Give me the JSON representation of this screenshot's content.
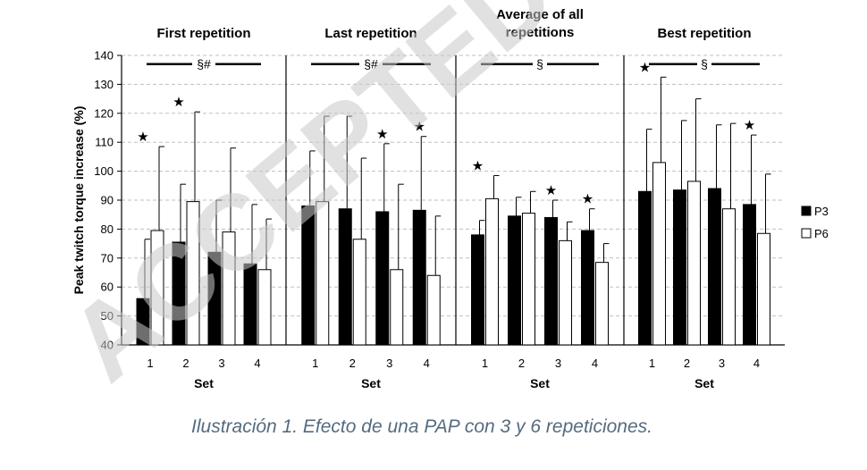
{
  "caption": "Ilustración 1. Efecto de una PAP con 3 y 6 repeticiones.",
  "watermark": "ACCEPTED",
  "colors": {
    "p3": "#000000",
    "p6": "#ffffff",
    "axis": "#000000",
    "grid": "#bfbfbf",
    "watermark": "#c8c8c8",
    "caption": "#556b7f"
  },
  "chart_data": [
    {
      "type": "bar",
      "title": "First repetition",
      "categories": [
        "1",
        "2",
        "3",
        "4"
      ],
      "xlabel": "Set",
      "ylabel": "Peak twitch torque increase (%)",
      "ylim": [
        40,
        140
      ],
      "yticks": [
        40,
        50,
        60,
        70,
        80,
        90,
        100,
        110,
        120,
        130,
        140
      ],
      "grid": true,
      "legend_position": "right",
      "series": [
        {
          "name": "P3",
          "values": [
            56,
            75.5,
            72,
            68
          ],
          "error": [
            20.5,
            20,
            18,
            20.5
          ]
        },
        {
          "name": "P6",
          "values": [
            79.5,
            89.5,
            79,
            66
          ],
          "error": [
            29,
            31,
            29,
            17.5
          ]
        }
      ],
      "significance_bar": "§#",
      "stars": [
        1,
        1,
        0,
        0
      ]
    },
    {
      "type": "bar",
      "title": "Last repetition",
      "categories": [
        "1",
        "2",
        "3",
        "4"
      ],
      "xlabel": "Set",
      "ylim": [
        40,
        140
      ],
      "grid": true,
      "series": [
        {
          "name": "P3",
          "values": [
            88,
            87,
            86,
            86.5
          ],
          "error": [
            19,
            32,
            23.5,
            25.5
          ]
        },
        {
          "name": "P6",
          "values": [
            89.5,
            76.5,
            66,
            64
          ],
          "error": [
            29.5,
            28,
            29.5,
            20.5
          ]
        }
      ],
      "significance_bar": "§#",
      "stars": [
        0,
        0,
        1,
        1
      ]
    },
    {
      "type": "bar",
      "title": "Average of all repetitions",
      "categories": [
        "1",
        "2",
        "3",
        "4"
      ],
      "xlabel": "Set",
      "ylim": [
        40,
        140
      ],
      "grid": true,
      "series": [
        {
          "name": "P3",
          "values": [
            78,
            84.5,
            84,
            79.5
          ],
          "error": [
            5,
            6.5,
            6,
            7.5
          ]
        },
        {
          "name": "P6",
          "values": [
            90.5,
            85.5,
            76,
            68.5
          ],
          "error": [
            8,
            7.5,
            6.5,
            6.5
          ]
        }
      ],
      "significance_bar": "§",
      "stars": [
        1,
        0,
        1,
        1
      ]
    },
    {
      "type": "bar",
      "title": "Best repetition",
      "categories": [
        "1",
        "2",
        "3",
        "4"
      ],
      "xlabel": "Set",
      "ylim": [
        40,
        140
      ],
      "grid": true,
      "series": [
        {
          "name": "P3",
          "values": [
            93,
            93.5,
            94,
            88.5
          ],
          "error": [
            21.5,
            24,
            22,
            24
          ]
        },
        {
          "name": "P6",
          "values": [
            103,
            96.5,
            87,
            78.5
          ],
          "error": [
            29.5,
            28.5,
            29.5,
            20.5
          ]
        }
      ],
      "significance_bar": "§",
      "stars": [
        1,
        0,
        0,
        1
      ]
    }
  ]
}
